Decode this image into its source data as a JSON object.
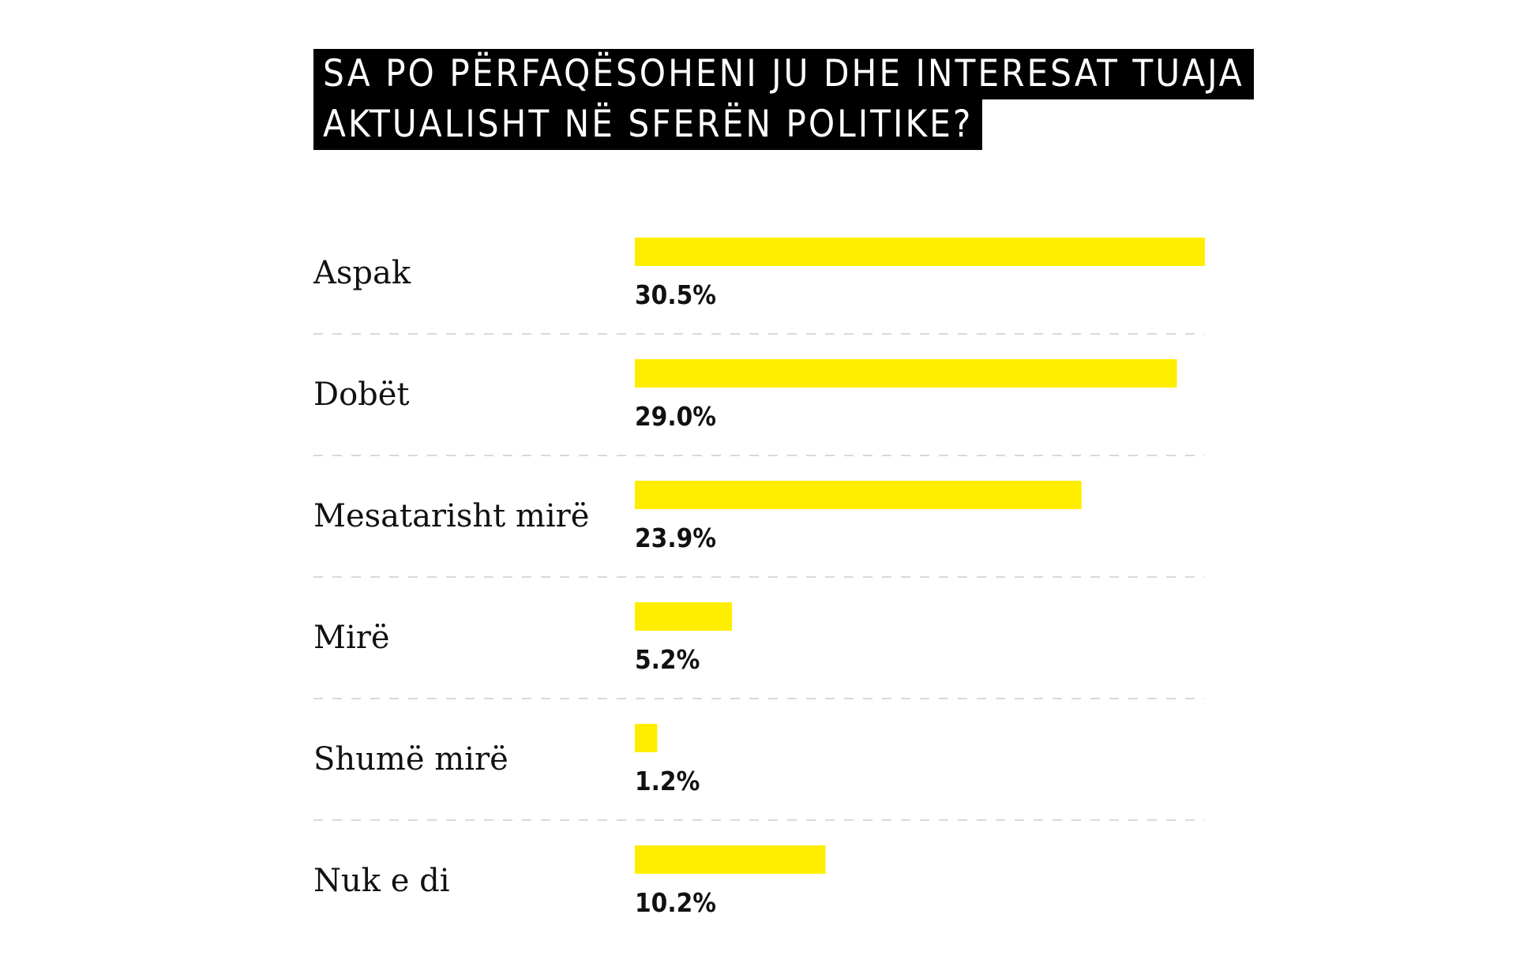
{
  "title_lines": [
    "SA PO PËRFAQËSOHENI JU DHE INTERESAT TUAJA",
    "AKTUALISHT NË SFERËN POLITIKE?"
  ],
  "colors": {
    "bar": "#FFEE00",
    "title_bg": "#000000",
    "title_text": "#FFFFFF",
    "divider": "#D9D9D9"
  },
  "chart_data": {
    "type": "bar",
    "orientation": "horizontal",
    "title": "SA PO PËRFAQËSOHENI JU DHE INTERESAT TUAJA AKTUALISHT NË SFERËN POLITIKE?",
    "categories": [
      "Aspak",
      "Dobët",
      "Mesatarisht mirë",
      "Mirë",
      "Shumë mirë",
      "Nuk e di"
    ],
    "values": [
      30.5,
      29.0,
      23.9,
      5.2,
      1.2,
      10.2
    ],
    "value_labels": [
      "30.5%",
      "29.0%",
      "23.9%",
      "5.2%",
      "1.2%",
      "10.2%"
    ],
    "unit": "%",
    "xlabel": "",
    "ylabel": "",
    "grid": false
  }
}
